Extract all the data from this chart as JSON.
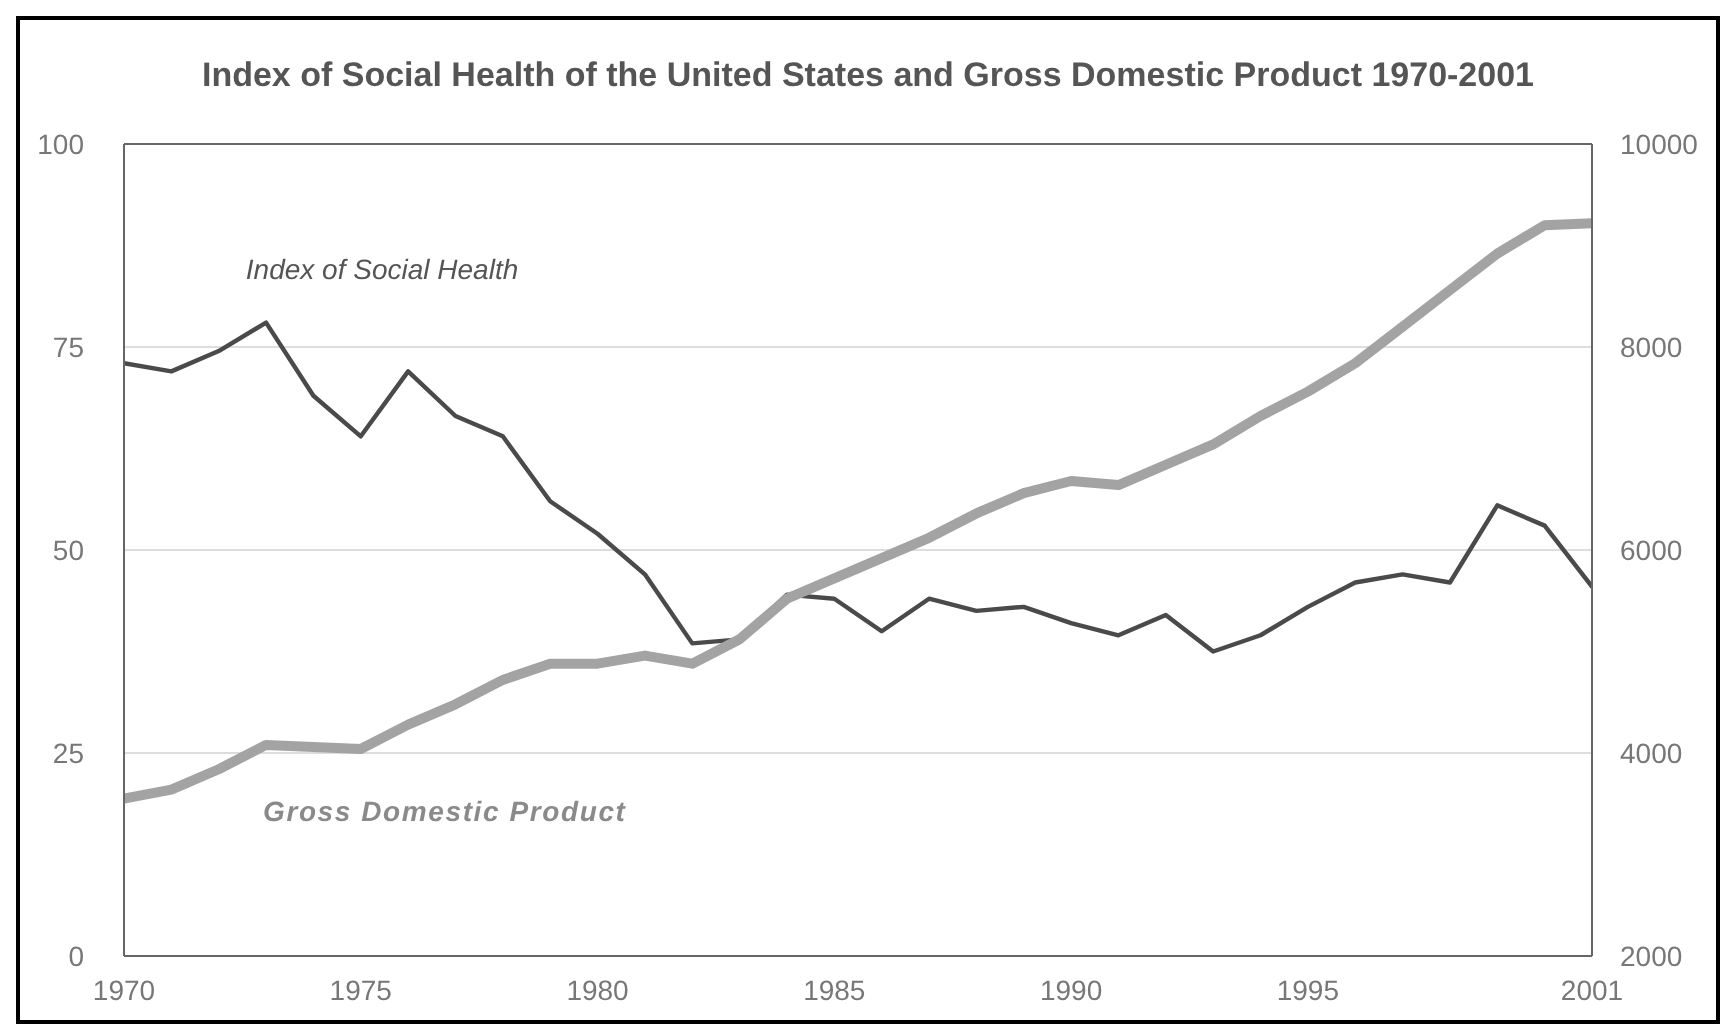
{
  "chart_data": {
    "type": "line",
    "title": "Index of Social Health of the United States and Gross Domestic Product 1970-2001",
    "x": [
      1970,
      1971,
      1972,
      1973,
      1974,
      1975,
      1976,
      1977,
      1978,
      1979,
      1980,
      1981,
      1982,
      1983,
      1984,
      1985,
      1986,
      1987,
      1988,
      1989,
      1990,
      1991,
      1992,
      1993,
      1994,
      1995,
      1996,
      1997,
      1998,
      1999,
      2000,
      2001
    ],
    "series": [
      {
        "name": "Index of Social Health",
        "color": "#4a4a4a",
        "values": [
          73,
          72,
          74.5,
          78,
          69,
          64,
          72,
          66.5,
          64,
          56,
          52,
          47,
          38.5,
          39,
          44.5,
          44,
          40,
          44,
          42.5,
          43,
          41,
          39.5,
          42,
          37.5,
          39.5,
          43,
          46,
          47,
          46,
          55.5,
          53,
          45.5
        ]
      },
      {
        "name": "Gross Domestic Product",
        "color": "#a3a3a3",
        "axis": "y2",
        "values": [
          3550,
          3640,
          3840,
          4080,
          4060,
          4040,
          4280,
          4480,
          4720,
          4880,
          4880,
          4960,
          4880,
          5120,
          5520,
          5720,
          5920,
          6120,
          6360,
          6560,
          6680,
          6640,
          6840,
          7040,
          7320,
          7560,
          7840,
          8200,
          8560,
          8920,
          9200,
          9220
        ]
      }
    ],
    "xlim": [
      1970,
      2001
    ],
    "xticks": [
      1970,
      1975,
      1980,
      1985,
      1990,
      1995,
      2001
    ],
    "ylim": [
      0,
      100
    ],
    "yticks": [
      0,
      25,
      50,
      75,
      100
    ],
    "y2lim": [
      2000,
      10000
    ],
    "y2ticks": [
      2000,
      4000,
      6000,
      8000,
      10000
    ],
    "grid": "y",
    "marker": "none",
    "line_style": "solid"
  }
}
